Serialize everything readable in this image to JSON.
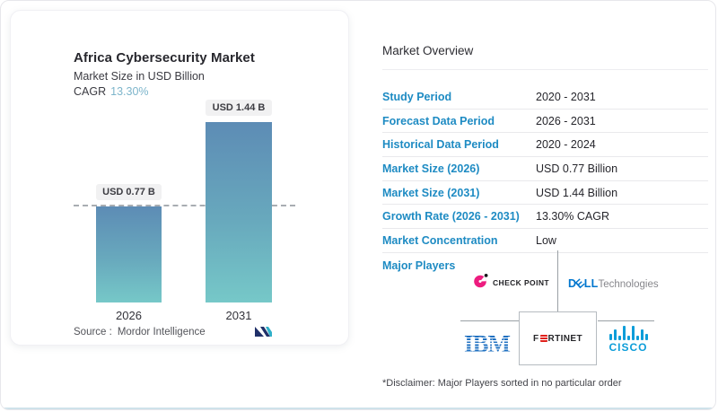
{
  "colors": {
    "accent_label_blue": "#1e8bc3",
    "cagr_teal": "#7db5cb",
    "bar_gradient_top": "#5d8cb5",
    "bar_gradient_bottom": "#76c8c8",
    "checkpoint_pink": "#ed1c7f",
    "dell_blue": "#0076ce",
    "ibm_blue": "#1f70c1",
    "cisco_blue": "#0d9dd9",
    "fortinet_red": "#e0201b",
    "mordor_navy": "#203069",
    "mordor_teal": "#2fb0c9"
  },
  "chart_card": {
    "title": "Africa Cybersecurity Market",
    "subtitle": "Market Size in USD Billion",
    "cagr_label": "CAGR",
    "cagr_value": "13.30%",
    "source_label": "Source :",
    "source_value": "Mordor Intelligence"
  },
  "chart_data": {
    "type": "bar",
    "title": "Africa Cybersecurity Market",
    "subtitle": "Market Size in USD Billion",
    "categories": [
      "2026",
      "2031"
    ],
    "values": [
      0.77,
      1.44
    ],
    "value_labels": [
      "USD 0.77 B",
      "USD 1.44 B"
    ],
    "unit": "USD Billion",
    "cagr": "13.30%",
    "ylim": [
      0,
      1.6
    ],
    "reference_line": {
      "value": 0.77,
      "style": "dashed"
    },
    "legend": "none",
    "grid": "off",
    "source": "Mordor Intelligence"
  },
  "overview": {
    "heading": "Market Overview",
    "rows": [
      {
        "label": "Study Period",
        "value": "2020 - 2031"
      },
      {
        "label": "Forecast Data Period",
        "value": "2026 - 2031"
      },
      {
        "label": "Historical Data Period",
        "value": "2020 - 2024"
      },
      {
        "label": "Market Size (2026)",
        "value": "USD 0.77 Billion"
      },
      {
        "label": "Market Size (2031)",
        "value": "USD 1.44 Billion"
      },
      {
        "label": "Growth Rate (2026 - 2031)",
        "value": "13.30% CAGR"
      },
      {
        "label": "Market Concentration",
        "value": "Low"
      }
    ],
    "major_players_label": "Major Players",
    "players": [
      "Check Point",
      "Dell Technologies",
      "IBM",
      "Fortinet",
      "Cisco"
    ],
    "disclaimer": "*Disclaimer: Major Players sorted in no particular order"
  },
  "logos": {
    "checkpoint_text": "CHECK POINT",
    "dell_d": "D",
    "dell_e": "E",
    "dell_ll": "LL",
    "dell_tech": "Technologies",
    "ibm_text": "IBM",
    "fortinet_f": "F",
    "fortinet_rest": "RTINET",
    "cisco_text": "CISCO"
  }
}
